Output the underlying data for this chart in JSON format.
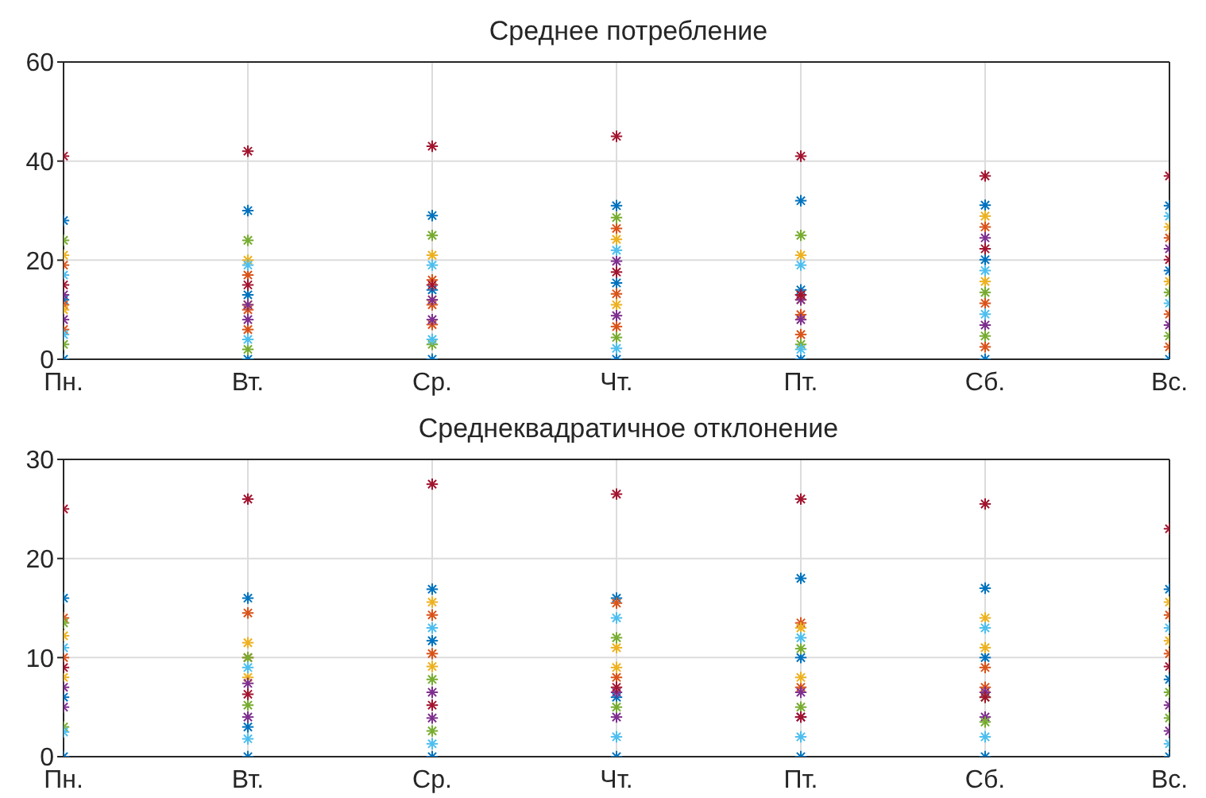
{
  "chart_data": [
    {
      "type": "scatter",
      "title": "Среднее потребление",
      "categories": [
        "Пн.",
        "Вт.",
        "Ср.",
        "Чт.",
        "Пт.",
        "Сб.",
        "Вс."
      ],
      "ylim": [
        0,
        60
      ],
      "yticks": [
        0,
        20,
        40,
        60
      ],
      "grid": true,
      "marker": "cross",
      "series": [
        {
          "color": "#0072bd",
          "x": [
            "Пн.",
            "Вт.",
            "Ср.",
            "Чт.",
            "Пт.",
            "Сб.",
            "Вс.",
            "Пн.",
            "Вт.",
            "Ср.",
            "Чт.",
            "Пт.",
            "Сб.",
            "Вс.",
            "Пн.",
            "Вт.",
            "Ср.",
            "Чт.",
            "Пт.",
            "Сб.",
            "Вс."
          ],
          "values": [
            0,
            0,
            0,
            0,
            0,
            0,
            0,
            28,
            30,
            29,
            31,
            32,
            31.1,
            31,
            12,
            13,
            14,
            15.4,
            14,
            20.1,
            17.9
          ]
        },
        {
          "color": "#d95319",
          "x": [
            "Пн.",
            "Вт.",
            "Ср.",
            "Чт.",
            "Пт.",
            "Сб.",
            "Вс.",
            "Пн.",
            "Вт.",
            "Ср.",
            "Чт.",
            "Пт.",
            "Сб.",
            "Вс.",
            "Пн.",
            "Вт.",
            "Ср.",
            "Чт.",
            "Пт.",
            "Сб.",
            "Вс."
          ],
          "values": [
            6,
            6,
            7,
            6.6,
            5,
            2.5,
            2.5,
            19,
            17,
            16,
            26.4,
            9,
            26.7,
            24.5,
            11,
            10,
            11,
            13.2,
            13,
            11.3,
            9.1
          ]
        },
        {
          "color": "#edb120",
          "x": [
            "Пн.",
            "Вт.",
            "Ср.",
            "Чт.",
            "Пт.",
            "Сб.",
            "Вс.",
            "Пн.",
            "Вт.",
            "Ср.",
            "Чт.",
            "Пт.",
            "Сб.",
            "Вс."
          ],
          "values": [
            21,
            20,
            21,
            24.2,
            21,
            28.9,
            26.7,
            10,
            11,
            12,
            11,
            12,
            15.7,
            15.7
          ]
        },
        {
          "color": "#7e2f8e",
          "x": [
            "Пн.",
            "Вт.",
            "Ср.",
            "Чт.",
            "Пт.",
            "Сб.",
            "Вс.",
            "Пн.",
            "Вт.",
            "Ср.",
            "Чт.",
            "Пт.",
            "Сб.",
            "Вс."
          ],
          "values": [
            8,
            8,
            8,
            8.8,
            8,
            6.9,
            6.9,
            13,
            11,
            12,
            19.8,
            12,
            24.5,
            22.3
          ]
        },
        {
          "color": "#77ac30",
          "x": [
            "Пн.",
            "Вт.",
            "Ср.",
            "Чт.",
            "Пт.",
            "Сб.",
            "Вс.",
            "Пн.",
            "Вт.",
            "Ср.",
            "Чт.",
            "Пт.",
            "Сб.",
            "Вс."
          ],
          "values": [
            24,
            24,
            25,
            28.6,
            25,
            13.5,
            13.5,
            3,
            2,
            3,
            4.4,
            3,
            4.7,
            4.7
          ]
        },
        {
          "color": "#4dbeee",
          "x": [
            "Пн.",
            "Вт.",
            "Ср.",
            "Чт.",
            "Пт.",
            "Сб.",
            "Вс.",
            "Пн.",
            "Вт.",
            "Ср.",
            "Чт.",
            "Пт.",
            "Сб.",
            "Вс."
          ],
          "values": [
            17,
            19,
            19,
            22,
            19,
            17.9,
            28.9,
            5,
            4,
            4,
            2.2,
            2,
            9.1,
            11.3
          ]
        },
        {
          "color": "#a2142f",
          "x": [
            "Пн.",
            "Вт.",
            "Ср.",
            "Чт.",
            "Пт.",
            "Сб.",
            "Вс.",
            "Пн.",
            "Вт.",
            "Ср.",
            "Чт.",
            "Пт.",
            "Сб.",
            "Вс."
          ],
          "values": [
            41,
            42,
            43,
            45,
            41,
            37,
            37,
            15,
            15,
            15,
            17.6,
            13,
            22.3,
            20.1
          ]
        }
      ]
    },
    {
      "type": "scatter",
      "title": "Среднеквадратичное отклонение",
      "categories": [
        "Пн.",
        "Вт.",
        "Ср.",
        "Чт.",
        "Пт.",
        "Сб.",
        "Вс."
      ],
      "ylim": [
        0,
        30
      ],
      "yticks": [
        0,
        10,
        20,
        30
      ],
      "grid": true,
      "marker": "cross",
      "series": [
        {
          "color": "#0072bd",
          "x": [
            "Пн.",
            "Вт.",
            "Ср.",
            "Чт.",
            "Пт.",
            "Сб.",
            "Вс.",
            "Пн.",
            "Вт.",
            "Ср.",
            "Чт.",
            "Пт.",
            "Сб.",
            "Вс.",
            "Пн.",
            "Вт.",
            "Ср.",
            "Чт.",
            "Пт.",
            "Сб.",
            "Вс."
          ],
          "values": [
            0,
            0,
            0,
            0,
            0,
            0,
            0,
            16,
            16,
            16.9,
            16,
            18,
            17,
            16.9,
            6,
            3,
            11.7,
            6,
            10,
            10,
            7.8
          ]
        },
        {
          "color": "#d95319",
          "x": [
            "Пн.",
            "Вт.",
            "Ср.",
            "Чт.",
            "Пт.",
            "Сб.",
            "Вс.",
            "Пн.",
            "Вт.",
            "Ср.",
            "Чт.",
            "Пт.",
            "Сб.",
            "Вс."
          ],
          "values": [
            14,
            14.5,
            14.3,
            15.5,
            13.5,
            9,
            14.3,
            10,
            10,
            10.4,
            8,
            7,
            7,
            10.4
          ]
        },
        {
          "color": "#edb120",
          "x": [
            "Пн.",
            "Вт.",
            "Ср.",
            "Чт.",
            "Пт.",
            "Сб.",
            "Вс.",
            "Пн.",
            "Вт.",
            "Ср.",
            "Чт.",
            "Пт.",
            "Сб.",
            "Вс."
          ],
          "values": [
            8,
            8,
            9.1,
            9,
            8,
            14,
            15.6,
            12.2,
            11.5,
            15.6,
            11,
            13,
            11,
            11.7
          ]
        },
        {
          "color": "#7e2f8e",
          "x": [
            "Пн.",
            "Вт.",
            "Ср.",
            "Чт.",
            "Пт.",
            "Сб.",
            "Вс.",
            "Пн.",
            "Вт.",
            "Ср.",
            "Чт.",
            "Пт.",
            "Сб.",
            "Вс."
          ],
          "values": [
            5,
            4,
            3.9,
            4,
            4,
            4,
            2.6,
            7,
            7.4,
            6.5,
            6.5,
            6.5,
            6.5,
            5.2
          ]
        },
        {
          "color": "#77ac30",
          "x": [
            "Пн.",
            "Вт.",
            "Ср.",
            "Чт.",
            "Пт.",
            "Сб.",
            "Вс.",
            "Пн.",
            "Вт.",
            "Ср.",
            "Чт.",
            "Пт.",
            "Сб.",
            "Вс."
          ],
          "values": [
            13.5,
            10,
            7.8,
            12,
            10.9,
            6,
            6.5,
            3,
            5.2,
            2.6,
            5,
            5,
            3.5,
            3.9
          ]
        },
        {
          "color": "#4dbeee",
          "x": [
            "Пн.",
            "Вт.",
            "Ср.",
            "Чт.",
            "Пт.",
            "Сб.",
            "Вс.",
            "Пн.",
            "Вт.",
            "Ср.",
            "Чт.",
            "Пт.",
            "Сб.",
            "Вс."
          ],
          "values": [
            11,
            9,
            13,
            14,
            12,
            13,
            13,
            2.5,
            1.8,
            1.3,
            2,
            2,
            2,
            1.3
          ]
        },
        {
          "color": "#a2142f",
          "x": [
            "Пн.",
            "Вт.",
            "Ср.",
            "Чт.",
            "Пт.",
            "Сб.",
            "Вс.",
            "Пн.",
            "Вт.",
            "Ср.",
            "Чт.",
            "Пт.",
            "Сб.",
            "Вс."
          ],
          "values": [
            25,
            26,
            27.5,
            26.5,
            26,
            25.5,
            23,
            9,
            6.3,
            5.2,
            7,
            4,
            6,
            9.1
          ]
        }
      ]
    }
  ]
}
